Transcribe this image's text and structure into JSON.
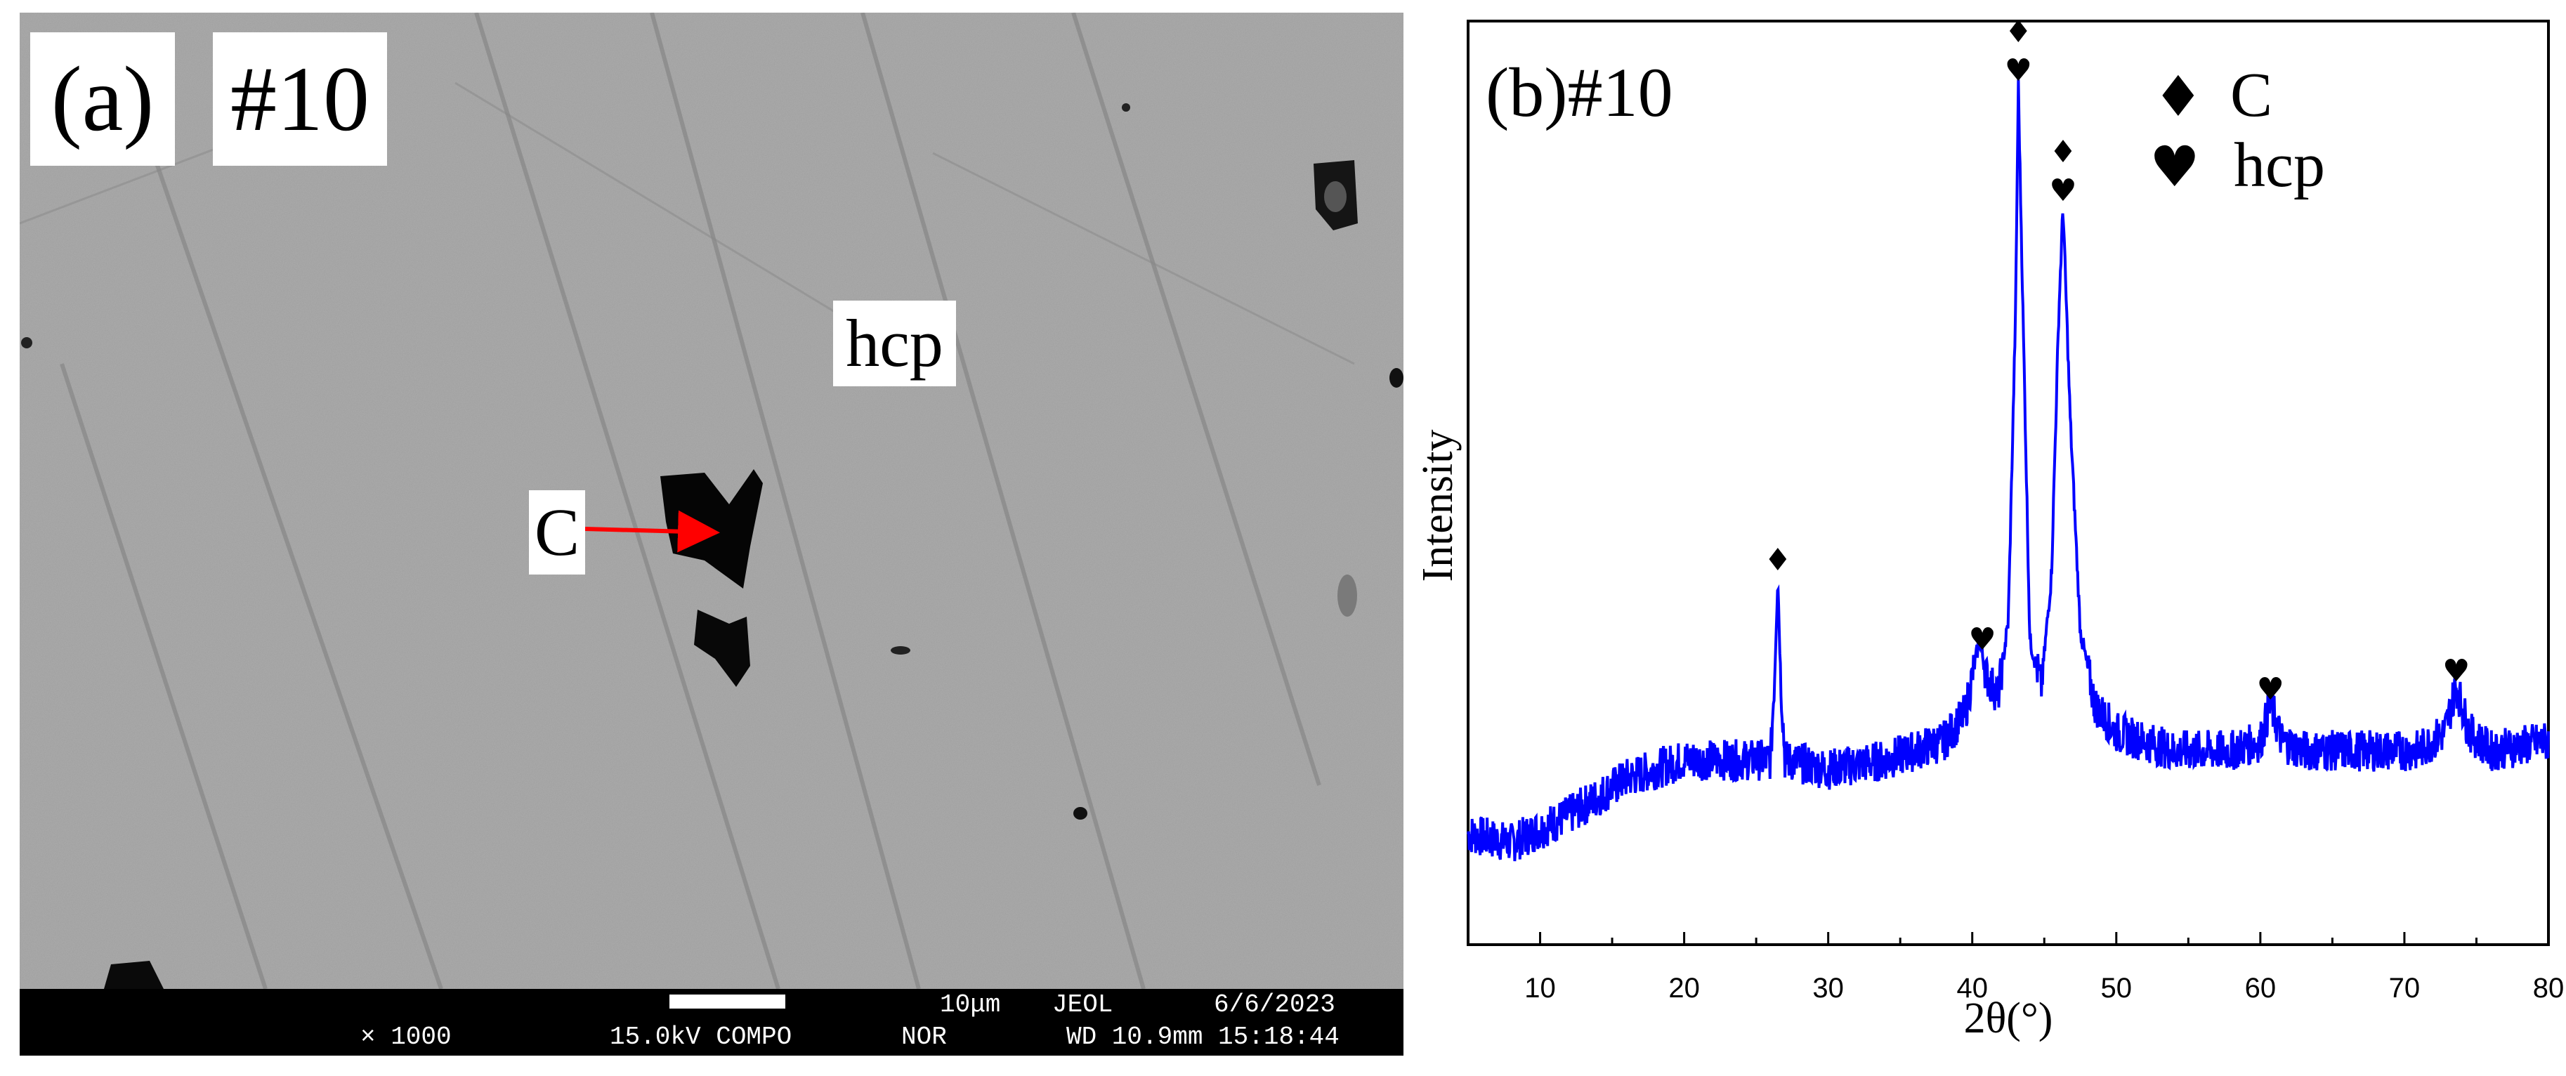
{
  "panel_a": {
    "label": "(a)",
    "sample": "#10",
    "phase_label": "hcp",
    "particle_label": "C",
    "annotation_arrow_color": "#ff0000",
    "info_bar": {
      "magnification": "× 1000",
      "voltage_mode": "15.0kV COMPO",
      "signal": "NOR",
      "scale": "10μm",
      "maker": "JEOL",
      "wd_time": "WD 10.9mm 15:18:44",
      "date": "6/6/2023"
    }
  },
  "panel_b": {
    "label": "(b)#10",
    "legend": [
      {
        "symbol": "♦",
        "label": "C"
      },
      {
        "symbol": "♥",
        "label": "hcp"
      }
    ]
  },
  "chart_data": {
    "type": "line",
    "title": "",
    "xlabel": "2θ(°)",
    "ylabel": "Intensity",
    "xlim": [
      5,
      80
    ],
    "ylim": [
      0,
      100
    ],
    "xticks": [
      10,
      20,
      30,
      40,
      50,
      60,
      70,
      80
    ],
    "grid": false,
    "legend_position": "top-right",
    "color": "#0000ff",
    "series": [
      {
        "x": [
          5,
          8,
          12,
          16,
          20,
          24,
          26,
          26.3,
          26.5,
          26.7,
          27,
          30,
          34,
          38,
          39.5,
          40.5,
          41,
          41.8,
          42.5,
          43.0,
          43.2,
          43.5,
          44.0,
          44.8,
          45.5,
          46.0,
          46.3,
          46.8,
          47.5,
          48.5,
          50,
          54,
          58,
          60,
          60.7,
          61.5,
          63,
          67,
          71,
          72.8,
          73.6,
          74.5,
          76,
          80
        ],
        "y": [
          12,
          11,
          14,
          18,
          20,
          20,
          20,
          30,
          40,
          29,
          20,
          19,
          20,
          22,
          25,
          33,
          29,
          27,
          35,
          68,
          93,
          70,
          33,
          28,
          40,
          68,
          80,
          57,
          34,
          26,
          23,
          21,
          21,
          22,
          26,
          22,
          21,
          21,
          21,
          23,
          28,
          23,
          21,
          22
        ]
      }
    ],
    "annotations": [
      {
        "x": 26.5,
        "symbols": "♦"
      },
      {
        "x": 40.7,
        "symbols": "♥"
      },
      {
        "x": 43.2,
        "symbols": "♦♥"
      },
      {
        "x": 46.3,
        "symbols": "♦♥"
      },
      {
        "x": 60.7,
        "symbols": "♥"
      },
      {
        "x": 73.6,
        "symbols": "♥"
      }
    ]
  }
}
